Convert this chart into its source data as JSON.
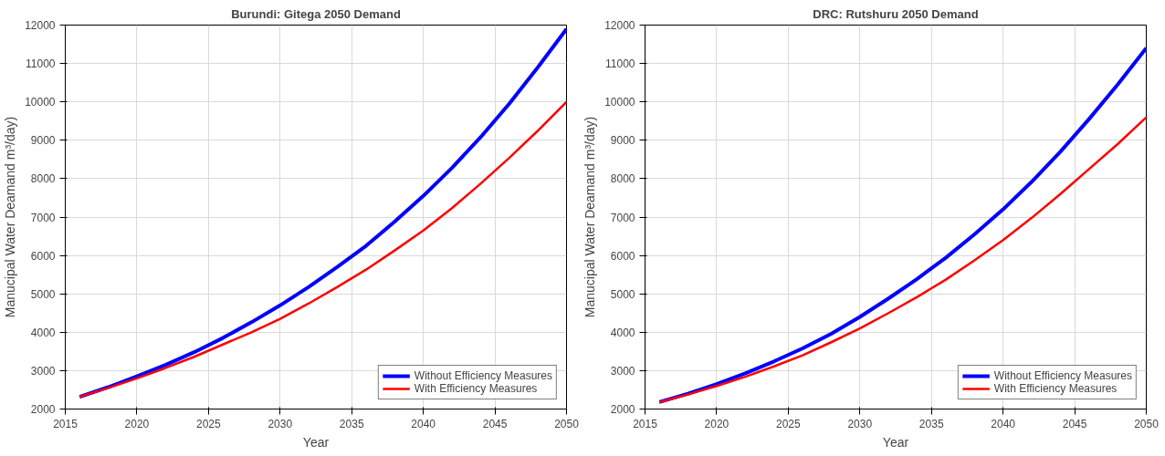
{
  "chart_data": [
    {
      "type": "line",
      "title": "Burundi: Gitega 2050 Demand",
      "xlabel": "Year",
      "ylabel": "Manucipal Water Deamand m³/day)",
      "x": [
        2016,
        2018,
        2020,
        2022,
        2024,
        2026,
        2028,
        2030,
        2032,
        2034,
        2036,
        2038,
        2040,
        2042,
        2044,
        2046,
        2048,
        2050
      ],
      "series": [
        {
          "name": "Without Efficiency Measures",
          "color": "#0000ff",
          "values": [
            2320,
            2570,
            2850,
            3150,
            3480,
            3850,
            4260,
            4700,
            5180,
            5700,
            6250,
            6880,
            7550,
            8280,
            9080,
            9950,
            10900,
            11900
          ]
        },
        {
          "name": "With Efficiency Measures",
          "color": "#ff0000",
          "values": [
            2320,
            2550,
            2800,
            3070,
            3360,
            3680,
            4000,
            4350,
            4750,
            5180,
            5630,
            6130,
            6650,
            7230,
            7870,
            8540,
            9250,
            10000
          ]
        }
      ],
      "xlim": [
        2015,
        2050
      ],
      "xticks": [
        2015,
        2020,
        2025,
        2030,
        2035,
        2040,
        2045,
        2050
      ],
      "ylim": [
        2000,
        12000
      ],
      "yticks": [
        2000,
        3000,
        4000,
        5000,
        6000,
        7000,
        8000,
        9000,
        10000,
        11000,
        12000
      ],
      "grid": true,
      "legend": "bottom right",
      "marker": "none",
      "line_style": "solid"
    },
    {
      "type": "line",
      "title": "DRC: Rutshuru 2050 Demand",
      "xlabel": "Year",
      "ylabel": "Manucipal Water Deamand m³/day)",
      "x": [
        2016,
        2018,
        2020,
        2022,
        2024,
        2026,
        2028,
        2030,
        2032,
        2034,
        2036,
        2038,
        2040,
        2042,
        2044,
        2046,
        2048,
        2050
      ],
      "series": [
        {
          "name": "Without Efficiency Measures",
          "color": "#0000ff",
          "values": [
            2180,
            2400,
            2650,
            2930,
            3240,
            3580,
            3960,
            4400,
            4880,
            5390,
            5940,
            6550,
            7200,
            7920,
            8700,
            9550,
            10450,
            11400
          ]
        },
        {
          "name": "With Efficiency Measures",
          "color": "#ff0000",
          "values": [
            2180,
            2380,
            2600,
            2840,
            3110,
            3400,
            3740,
            4100,
            4500,
            4920,
            5370,
            5870,
            6400,
            6980,
            7600,
            8250,
            8900,
            9600
          ]
        }
      ],
      "xlim": [
        2015,
        2050
      ],
      "xticks": [
        2015,
        2020,
        2025,
        2030,
        2035,
        2040,
        2045,
        2050
      ],
      "ylim": [
        2000,
        12000
      ],
      "yticks": [
        2000,
        3000,
        4000,
        5000,
        6000,
        7000,
        8000,
        9000,
        10000,
        11000,
        12000
      ],
      "grid": true,
      "legend": "bottom right",
      "marker": "none",
      "line_style": "solid"
    }
  ]
}
